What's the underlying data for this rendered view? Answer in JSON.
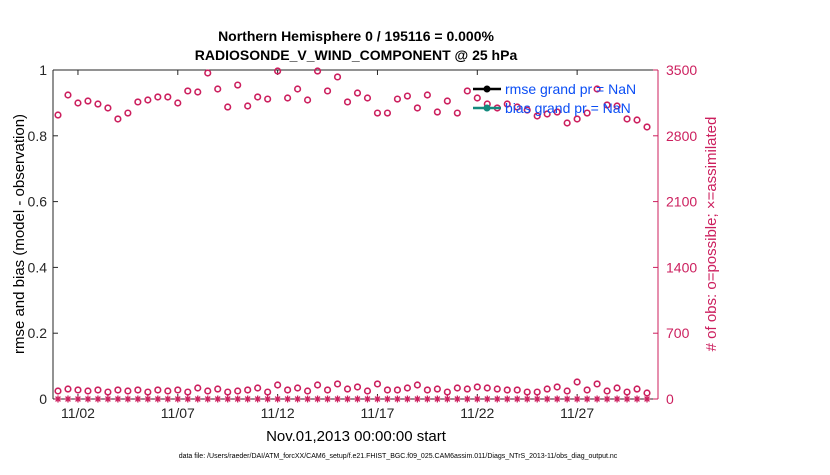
{
  "chart_data": {
    "type": "scatter",
    "title": "Northern Hemisphere 0 / 195116 = 0.000%",
    "subtitle": "RADIOSONDE_V_WIND_COMPONENT @ 25 hPa",
    "xlabel": "Nov.01,2013 00:00:00 start",
    "ylabel": "rmse and bias (model - observation)",
    "y2label": "# of obs: o=possible; ×=assimilated",
    "footnote": "data file: /Users/raeder/DAI/ATM_forcXX/CAM6_setup/f.e21.FHIST_BGC.f09_025.CAM6assim.011/Diags_NTrS_2013-11/obs_diag_output.nc",
    "x": [
      0,
      0.5,
      1,
      1.5,
      2,
      2.5,
      3,
      3.5,
      4,
      4.5,
      5,
      5.5,
      6,
      6.5,
      7,
      7.5,
      8,
      8.5,
      9,
      9.5,
      10,
      10.5,
      11,
      11.5,
      12,
      12.5,
      13,
      13.5,
      14,
      14.5,
      15,
      15.5,
      16,
      16.5,
      17,
      17.5,
      18,
      18.5,
      19,
      19.5,
      20,
      20.5,
      21,
      21.5,
      22,
      22.5,
      23,
      23.5,
      24,
      24.5,
      25,
      25.5,
      26,
      26.5,
      27,
      27.5,
      28,
      28.5,
      29,
      29.5
    ],
    "xlim": [
      -0.25,
      30.05
    ],
    "xticks": [
      {
        "value": 1,
        "label": "11/02"
      },
      {
        "value": 6,
        "label": "11/07"
      },
      {
        "value": 11,
        "label": "11/12"
      },
      {
        "value": 16,
        "label": "11/17"
      },
      {
        "value": 21,
        "label": "11/22"
      },
      {
        "value": 26,
        "label": "11/27"
      }
    ],
    "ylim": [
      0,
      1
    ],
    "yticks": [
      0,
      0.2,
      0.4,
      0.6,
      0.8,
      1
    ],
    "y2lim": [
      0,
      3500
    ],
    "y2ticks": [
      0,
      700,
      1400,
      2100,
      2800,
      3500
    ],
    "y2color": "#cc1f5e",
    "legend": "upper right",
    "series": [
      {
        "name": "rmse grand pr = NaN",
        "color": "#000000",
        "marker": "dot"
      },
      {
        "name": "bias grand pr = NaN",
        "color": "#138a7e",
        "marker": "dot"
      },
      {
        "axis": "y2",
        "color": "#cc1f5e",
        "marker": "circle",
        "values": [
          3021,
          3234,
          3149,
          3170,
          3138,
          3096,
          2979,
          3042,
          3160,
          3181,
          3213,
          3213,
          3149,
          3277,
          3266,
          3468,
          3298,
          3106,
          3340,
          3117,
          3213,
          3191,
          3489,
          3202,
          3298,
          3181,
          3489,
          3277,
          3426,
          3160,
          3255,
          3202,
          3042,
          3042,
          3191,
          3223,
          3096,
          3234,
          3053,
          3170,
          3042,
          3277,
          3202,
          3138,
          3096,
          3138,
          3106,
          3074,
          3011,
          3032,
          3053,
          2936,
          2979,
          3042,
          3298,
          3128,
          3117,
          2979,
          2968,
          2894
        ]
      },
      {
        "axis": "y2",
        "color": "#cc1f5e",
        "marker": "circle",
        "values": [
          85,
          106,
          96,
          85,
          96,
          74,
          96,
          85,
          96,
          74,
          96,
          85,
          96,
          74,
          117,
          85,
          106,
          74,
          85,
          96,
          117,
          74,
          149,
          96,
          117,
          85,
          149,
          96,
          160,
          106,
          128,
          85,
          160,
          96,
          96,
          117,
          149,
          96,
          106,
          74,
          117,
          106,
          128,
          117,
          106,
          96,
          96,
          74,
          74,
          106,
          128,
          85,
          181,
          96,
          160,
          85,
          117,
          74,
          106,
          64
        ]
      },
      {
        "axis": "y2",
        "color": "#cc1f5e",
        "marker": "star",
        "values": [
          0,
          0,
          0,
          0,
          0,
          0,
          0,
          0,
          0,
          0,
          0,
          0,
          0,
          0,
          0,
          0,
          0,
          0,
          0,
          0,
          0,
          0,
          0,
          0,
          0,
          0,
          0,
          0,
          0,
          0,
          0,
          0,
          0,
          0,
          0,
          0,
          0,
          0,
          0,
          0,
          0,
          0,
          0,
          0,
          0,
          0,
          0,
          0,
          0,
          0,
          0,
          0,
          0,
          0,
          0,
          0,
          0,
          0,
          0,
          0
        ]
      }
    ]
  }
}
